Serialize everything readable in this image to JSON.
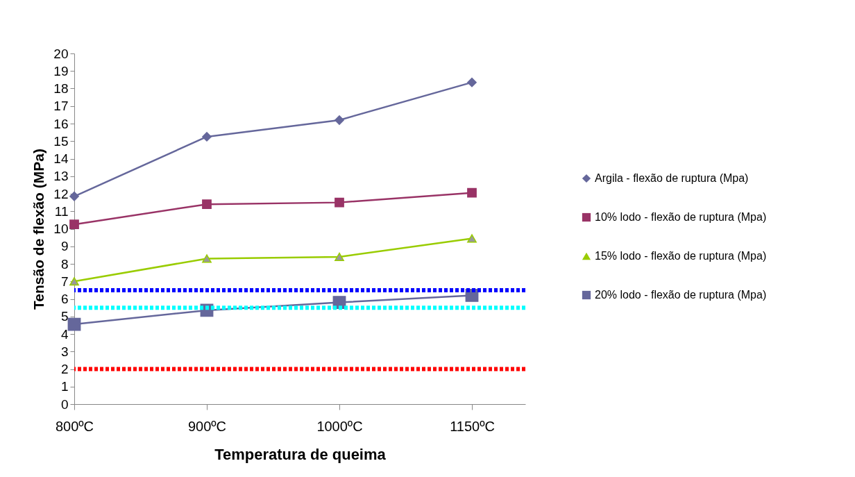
{
  "chart_data": {
    "type": "line",
    "xlabel": "Temperatura de queima",
    "ylabel": "Tensão de flexão (MPa)",
    "categories": [
      "800ºC",
      "900ºC",
      "1000ºC",
      "1150ºC"
    ],
    "series": [
      {
        "name": "Argila - flexão de ruptura (Mpa)",
        "color": "#65679b",
        "marker": "diamond",
        "values": [
          11.85,
          15.25,
          16.2,
          18.35
        ]
      },
      {
        "name": "10% lodo - flexão de ruptura (Mpa)",
        "color": "#993366",
        "marker": "square",
        "values": [
          10.25,
          11.4,
          11.5,
          12.05
        ]
      },
      {
        "name": "15% lodo - flexão de ruptura (Mpa)",
        "color": "#99cc00",
        "marker": "triangle",
        "values": [
          7.0,
          8.3,
          8.4,
          9.45
        ]
      },
      {
        "name": "20% lodo - flexão de ruptura (Mpa)",
        "color": "#65679b",
        "marker": "square",
        "values": [
          4.55,
          5.35,
          5.8,
          6.2
        ]
      }
    ],
    "ref_lines": [
      {
        "axis": "y",
        "value": 6.5,
        "color": "#0000ff",
        "line_style": "dotted"
      },
      {
        "axis": "y",
        "value": 5.5,
        "color": "#00ffff",
        "line_style": "dotted"
      },
      {
        "axis": "y",
        "value": 2,
        "color": "#ff0000",
        "line_style": "dotted"
      }
    ],
    "ylim": [
      0,
      20
    ],
    "yticks": [
      0,
      1,
      2,
      3,
      4,
      5,
      6,
      7,
      8,
      9,
      10,
      11,
      12,
      13,
      14,
      15,
      16,
      17,
      18,
      19,
      20
    ],
    "grid": false,
    "legend": "right"
  }
}
